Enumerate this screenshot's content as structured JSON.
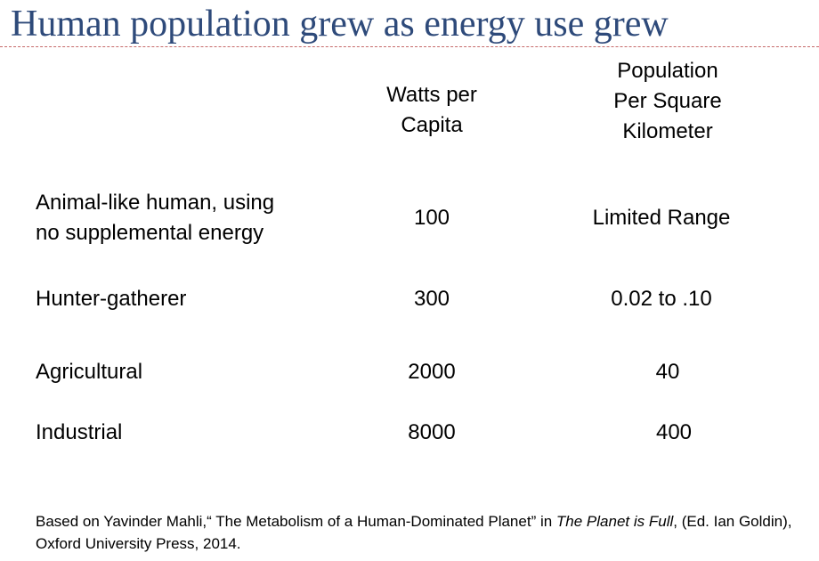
{
  "slide": {
    "title": "Human population grew as energy use grew",
    "title_color": "#2e4a7a",
    "accent_rule_color": "#c66a6a"
  },
  "table": {
    "headers": {
      "watts": "Watts per\nCapita",
      "density": "Population\nPer Square\nKilometer"
    },
    "rows": [
      {
        "stage": "Animal-like human, using\nno supplemental energy",
        "watts": "100",
        "density": "Limited Range"
      },
      {
        "stage": "Hunter-gatherer",
        "watts": "300",
        "density": "0.02  to .10"
      },
      {
        "stage": "Agricultural",
        "watts": "2000",
        "density": "40"
      },
      {
        "stage": "Industrial",
        "watts": "8000",
        "density": "400"
      }
    ]
  },
  "footnote": {
    "part1": "Based on Yavinder Mahli,“ The Metabolism of a Human-Dominated Planet” in ",
    "book_title": "The Planet is Full",
    "part2": ", (Ed. Ian Goldin), Oxford University Press, 2014."
  }
}
